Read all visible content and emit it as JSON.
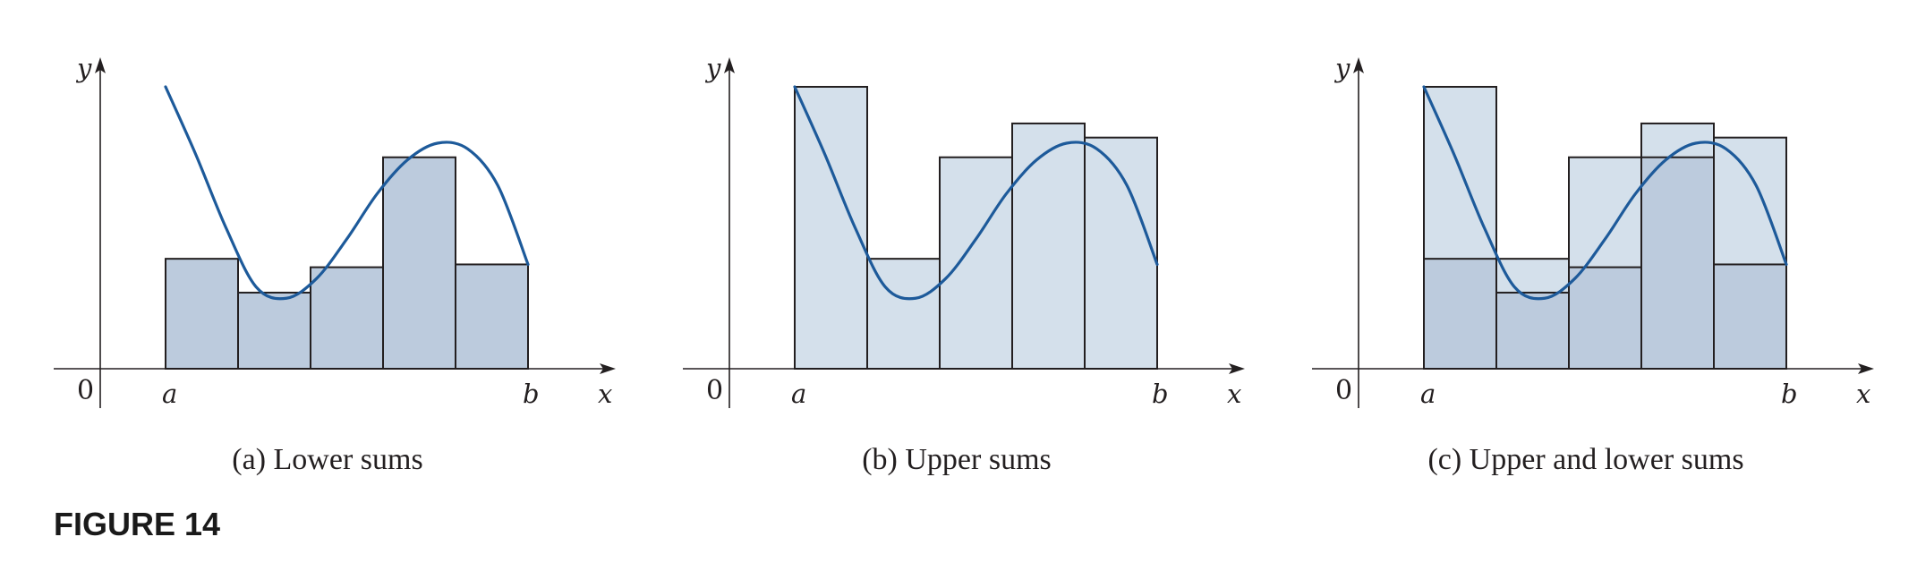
{
  "figure_label": "FIGURE 14",
  "colors": {
    "curve": "#1d5a9a",
    "lower_fill": "#bccbdd",
    "upper_fill": "#d4e0eb",
    "stroke": "#231f20"
  },
  "panels": [
    {
      "caption": "(a) Lower sums",
      "y_label": "y",
      "x_label": "x",
      "origin_label": "0",
      "a_label": "a",
      "b_label": "b",
      "show_lower": true,
      "show_upper": false
    },
    {
      "caption": "(b) Upper sums",
      "y_label": "y",
      "x_label": "x",
      "origin_label": "0",
      "a_label": "a",
      "b_label": "b",
      "show_lower": false,
      "show_upper": true
    },
    {
      "caption": "(c) Upper and lower sums",
      "y_label": "y",
      "x_label": "x",
      "origin_label": "0",
      "a_label": "a",
      "b_label": "b",
      "show_lower": true,
      "show_upper": true
    }
  ],
  "chart_data": {
    "type": "diagram",
    "subintervals": 5,
    "function_samples": [
      10.0,
      7.6,
      5.0,
      2.9,
      2.5,
      3.2,
      4.6,
      6.2,
      7.4,
      8.0,
      7.8,
      6.5,
      3.7
    ],
    "lower_heights": [
      3.9,
      2.7,
      3.6,
      7.5,
      3.7
    ],
    "upper_heights": [
      10.0,
      3.9,
      7.5,
      8.7,
      8.2
    ]
  }
}
